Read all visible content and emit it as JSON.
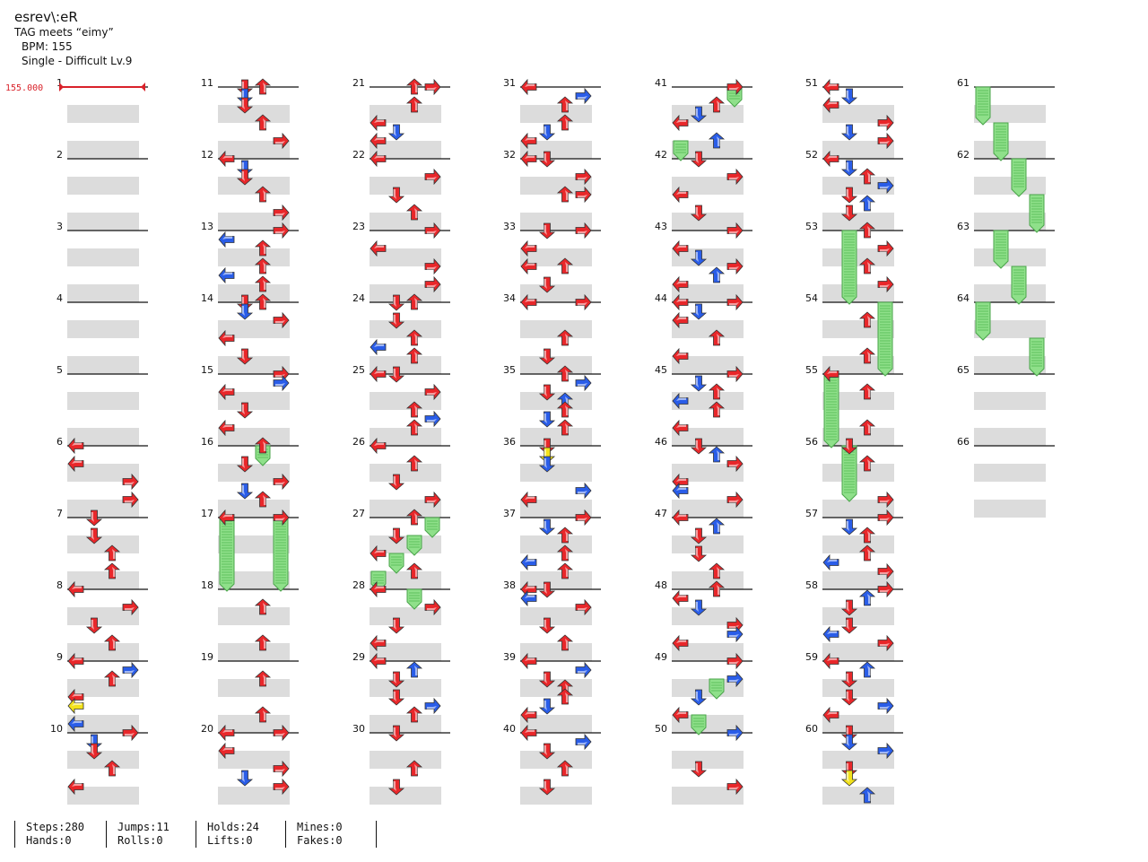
{
  "header": {
    "title": "esrev\\:eR",
    "tagline": "TAG meets “eimy”",
    "bpm_line": "BPM: 155",
    "difficulty_line": "Single - Difficult Lv.9"
  },
  "bpm_marker": "155.000",
  "measure_labels": [
    "1",
    "2",
    "3",
    "4",
    "5",
    "6",
    "7",
    "8",
    "9",
    "10",
    "11",
    "12",
    "13",
    "14",
    "15",
    "16",
    "17",
    "18",
    "19",
    "20",
    "21",
    "22",
    "23",
    "24",
    "25",
    "26",
    "27",
    "28",
    "29",
    "30",
    "31",
    "32",
    "33",
    "34",
    "35",
    "36",
    "37",
    "38",
    "39",
    "40",
    "41",
    "42",
    "43",
    "44",
    "45",
    "46",
    "47",
    "48",
    "49",
    "50",
    "51",
    "52",
    "53",
    "54",
    "55",
    "56",
    "57",
    "58",
    "59",
    "60",
    "61",
    "62",
    "63",
    "64",
    "65",
    "66"
  ],
  "colors": {
    "red_note": "#e8272a",
    "blue_note": "#2a5de8",
    "yellow_note": "#f2e21b",
    "hold_green": "#8fe08a",
    "lane_band": "#dcdcdc",
    "bpm_marker": "#d9222a"
  },
  "steps": [
    [
      6,
      0,
      0,
      "r"
    ],
    [
      6,
      0.25,
      0,
      "r"
    ],
    [
      6,
      0.5,
      3,
      "r"
    ],
    [
      6,
      0.75,
      3,
      "r"
    ],
    [
      7,
      0,
      1,
      "r"
    ],
    [
      7,
      0.25,
      1,
      "r"
    ],
    [
      7,
      0.5,
      2,
      "r"
    ],
    [
      7,
      0.75,
      2,
      "r"
    ],
    [
      8,
      0,
      0,
      "r"
    ],
    [
      8,
      0.25,
      3,
      "r"
    ],
    [
      8,
      0.5,
      1,
      "r"
    ],
    [
      8,
      0.75,
      2,
      "r"
    ],
    [
      9,
      0,
      0,
      "r"
    ],
    [
      9,
      0.125,
      3,
      "b"
    ],
    [
      9,
      0.25,
      2,
      "r"
    ],
    [
      9,
      0.5,
      0,
      "r"
    ],
    [
      9,
      0.625,
      0,
      "y"
    ],
    [
      9,
      0.875,
      0,
      "b"
    ],
    [
      10,
      0,
      3,
      "r"
    ],
    [
      10,
      0.125,
      1,
      "b"
    ],
    [
      10,
      0.25,
      1,
      "r"
    ],
    [
      10,
      0.5,
      2,
      "r"
    ],
    [
      10,
      0.75,
      0,
      "r"
    ],
    [
      11,
      0,
      1,
      "r"
    ],
    [
      11,
      0,
      2,
      "r"
    ],
    [
      11,
      0.125,
      1,
      "b"
    ],
    [
      11,
      0.25,
      1,
      "r"
    ],
    [
      11,
      0.5,
      2,
      "r"
    ],
    [
      11,
      0.75,
      3,
      "r"
    ],
    [
      12,
      0,
      0,
      "r"
    ],
    [
      12,
      0.125,
      1,
      "b"
    ],
    [
      12,
      0.25,
      1,
      "r"
    ],
    [
      12,
      0.5,
      2,
      "r"
    ],
    [
      12,
      0.75,
      3,
      "r"
    ],
    [
      13,
      0,
      3,
      "r"
    ],
    [
      13,
      0.125,
      0,
      "b"
    ],
    [
      13,
      0.25,
      2,
      "r"
    ],
    [
      13,
      0.5,
      2,
      "r"
    ],
    [
      13,
      0.625,
      0,
      "b"
    ],
    [
      13,
      0.75,
      2,
      "r"
    ],
    [
      14,
      0,
      1,
      "r"
    ],
    [
      14,
      0,
      2,
      "r"
    ],
    [
      14,
      0.125,
      1,
      "b"
    ],
    [
      14,
      0.25,
      3,
      "r"
    ],
    [
      14,
      0.5,
      0,
      "r"
    ],
    [
      14,
      0.75,
      1,
      "r"
    ],
    [
      15,
      0,
      3,
      "r"
    ],
    [
      15,
      0.125,
      3,
      "b"
    ],
    [
      15,
      0.25,
      0,
      "r"
    ],
    [
      15,
      0.5,
      1,
      "r"
    ],
    [
      15,
      0.75,
      0,
      "r"
    ],
    [
      16,
      0,
      2,
      "r"
    ],
    [
      16,
      0.25,
      1,
      "r"
    ],
    [
      16,
      0.5,
      3,
      "r"
    ],
    [
      16,
      0.625,
      1,
      "b"
    ],
    [
      16,
      0.75,
      2,
      "r"
    ],
    [
      17,
      0,
      0,
      "r"
    ],
    [
      17,
      0,
      3,
      "r"
    ],
    [
      18,
      0.25,
      2,
      "r"
    ],
    [
      18,
      0.75,
      2,
      "r"
    ],
    [
      19,
      0.25,
      2,
      "r"
    ],
    [
      19,
      0.75,
      2,
      "r"
    ],
    [
      20,
      0,
      0,
      "r"
    ],
    [
      20,
      0,
      3,
      "r"
    ],
    [
      20,
      0.25,
      0,
      "r"
    ],
    [
      20,
      0.5,
      3,
      "r"
    ],
    [
      20,
      0.625,
      1,
      "b"
    ],
    [
      20,
      0.75,
      3,
      "r"
    ],
    [
      21,
      0,
      2,
      "r"
    ],
    [
      21,
      0,
      3,
      "r"
    ],
    [
      21,
      0.25,
      2,
      "r"
    ],
    [
      21,
      0.5,
      0,
      "r"
    ],
    [
      21,
      0.625,
      1,
      "b"
    ],
    [
      21,
      0.75,
      0,
      "r"
    ],
    [
      22,
      0,
      0,
      "r"
    ],
    [
      22,
      0.25,
      3,
      "r"
    ],
    [
      22,
      0.5,
      1,
      "r"
    ],
    [
      22,
      0.75,
      2,
      "r"
    ],
    [
      23,
      0,
      3,
      "r"
    ],
    [
      23,
      0.25,
      0,
      "r"
    ],
    [
      23,
      0.5,
      3,
      "r"
    ],
    [
      23,
      0.75,
      3,
      "r"
    ],
    [
      24,
      0,
      1,
      "r"
    ],
    [
      24,
      0,
      2,
      "r"
    ],
    [
      24,
      0.25,
      1,
      "r"
    ],
    [
      24,
      0.5,
      2,
      "r"
    ],
    [
      24,
      0.625,
      0,
      "b"
    ],
    [
      24,
      0.75,
      2,
      "r"
    ],
    [
      25,
      0,
      0,
      "r"
    ],
    [
      25,
      0,
      1,
      "r"
    ],
    [
      25,
      0.25,
      3,
      "r"
    ],
    [
      25,
      0.5,
      2,
      "r"
    ],
    [
      25,
      0.625,
      3,
      "b"
    ],
    [
      25,
      0.75,
      2,
      "r"
    ],
    [
      26,
      0,
      0,
      "r"
    ],
    [
      26,
      0.25,
      2,
      "r"
    ],
    [
      26,
      0.5,
      1,
      "r"
    ],
    [
      26,
      0.75,
      3,
      "r"
    ],
    [
      27,
      0,
      2,
      "r"
    ],
    [
      27,
      0.25,
      1,
      "r"
    ],
    [
      27,
      0.5,
      0,
      "r"
    ],
    [
      27,
      0.75,
      2,
      "r"
    ],
    [
      28,
      0,
      0,
      "r"
    ],
    [
      28,
      0.25,
      3,
      "r"
    ],
    [
      28,
      0.5,
      1,
      "r"
    ],
    [
      28,
      0.75,
      0,
      "r"
    ],
    [
      29,
      0,
      0,
      "r"
    ],
    [
      29,
      0.125,
      2,
      "b"
    ],
    [
      29,
      0.25,
      1,
      "r"
    ],
    [
      29,
      0.5,
      1,
      "r"
    ],
    [
      29,
      0.625,
      3,
      "b"
    ],
    [
      29,
      0.75,
      2,
      "r"
    ],
    [
      30,
      0,
      1,
      "r"
    ],
    [
      30,
      0.5,
      2,
      "r"
    ],
    [
      30,
      0.75,
      1,
      "r"
    ],
    [
      31,
      0,
      0,
      "r"
    ],
    [
      31,
      0.125,
      3,
      "b"
    ],
    [
      31,
      0.25,
      2,
      "r"
    ],
    [
      31,
      0.5,
      2,
      "r"
    ],
    [
      31,
      0.625,
      1,
      "b"
    ],
    [
      31,
      0.75,
      0,
      "r"
    ],
    [
      32,
      0,
      0,
      "r"
    ],
    [
      32,
      0,
      1,
      "r"
    ],
    [
      32,
      0.25,
      3,
      "r"
    ],
    [
      32,
      0.5,
      2,
      "r"
    ],
    [
      32,
      0.5,
      3,
      "r"
    ],
    [
      33,
      0,
      1,
      "r"
    ],
    [
      33,
      0,
      3,
      "r"
    ],
    [
      33,
      0.25,
      0,
      "r"
    ],
    [
      33,
      0.5,
      2,
      "r"
    ],
    [
      33,
      0.5,
      0,
      "r"
    ],
    [
      33,
      0.75,
      1,
      "r"
    ],
    [
      34,
      0,
      0,
      "r"
    ],
    [
      34,
      0,
      3,
      "r"
    ],
    [
      34,
      0.5,
      2,
      "r"
    ],
    [
      34,
      0.75,
      1,
      "r"
    ],
    [
      35,
      0,
      2,
      "r"
    ],
    [
      35,
      0.125,
      3,
      "b"
    ],
    [
      35,
      0.25,
      1,
      "r"
    ],
    [
      35,
      0.375,
      2,
      "b"
    ],
    [
      35,
      0.5,
      2,
      "r"
    ],
    [
      35,
      0.625,
      1,
      "b"
    ],
    [
      35,
      0.75,
      2,
      "r"
    ],
    [
      36,
      0,
      1,
      "r"
    ],
    [
      36,
      0.125,
      1,
      "y"
    ],
    [
      36,
      0.25,
      1,
      "b"
    ],
    [
      36,
      0.625,
      3,
      "b"
    ],
    [
      36,
      0.75,
      0,
      "r"
    ],
    [
      37,
      0,
      3,
      "r"
    ],
    [
      37,
      0.125,
      1,
      "b"
    ],
    [
      37,
      0.25,
      2,
      "r"
    ],
    [
      37,
      0.5,
      2,
      "r"
    ],
    [
      37,
      0.625,
      0,
      "b"
    ],
    [
      37,
      0.75,
      2,
      "r"
    ],
    [
      38,
      0,
      0,
      "r"
    ],
    [
      38,
      0,
      1,
      "r"
    ],
    [
      38,
      0.125,
      0,
      "b"
    ],
    [
      38,
      0.25,
      3,
      "r"
    ],
    [
      38,
      0.5,
      1,
      "r"
    ],
    [
      38,
      0.75,
      2,
      "r"
    ],
    [
      39,
      0,
      0,
      "r"
    ],
    [
      39,
      0.125,
      3,
      "b"
    ],
    [
      39,
      0.25,
      1,
      "r"
    ],
    [
      39,
      0.375,
      2,
      "r"
    ],
    [
      39,
      0.5,
      2,
      "r"
    ],
    [
      39,
      0.625,
      1,
      "b"
    ],
    [
      39,
      0.75,
      0,
      "r"
    ],
    [
      40,
      0,
      0,
      "r"
    ],
    [
      40,
      0.125,
      3,
      "b"
    ],
    [
      40,
      0.25,
      1,
      "r"
    ],
    [
      40,
      0.5,
      2,
      "r"
    ],
    [
      40,
      0.75,
      1,
      "r"
    ],
    [
      41,
      0,
      3,
      "r"
    ],
    [
      41,
      0.25,
      2,
      "r"
    ],
    [
      41,
      0.375,
      1,
      "b"
    ],
    [
      41,
      0.5,
      0,
      "r"
    ],
    [
      41,
      0.75,
      2,
      "b"
    ],
    [
      42,
      0,
      1,
      "r"
    ],
    [
      42,
      0.25,
      3,
      "r"
    ],
    [
      42,
      0.5,
      0,
      "r"
    ],
    [
      42,
      0.75,
      1,
      "r"
    ],
    [
      43,
      0,
      3,
      "r"
    ],
    [
      43,
      0.25,
      0,
      "r"
    ],
    [
      43,
      0.375,
      1,
      "b"
    ],
    [
      43,
      0.5,
      3,
      "r"
    ],
    [
      43,
      0.625,
      2,
      "b"
    ],
    [
      43,
      0.75,
      0,
      "r"
    ],
    [
      44,
      0,
      0,
      "r"
    ],
    [
      44,
      0,
      3,
      "r"
    ],
    [
      44,
      0.125,
      1,
      "b"
    ],
    [
      44,
      0.25,
      0,
      "r"
    ],
    [
      44,
      0.5,
      2,
      "r"
    ],
    [
      44,
      0.75,
      0,
      "r"
    ],
    [
      45,
      0,
      3,
      "r"
    ],
    [
      45,
      0.125,
      1,
      "b"
    ],
    [
      45,
      0.25,
      2,
      "r"
    ],
    [
      45,
      0.375,
      0,
      "b"
    ],
    [
      45,
      0.5,
      2,
      "r"
    ],
    [
      45,
      0.75,
      0,
      "r"
    ],
    [
      46,
      0,
      1,
      "r"
    ],
    [
      46,
      0.125,
      2,
      "b"
    ],
    [
      46,
      0.25,
      3,
      "r"
    ],
    [
      46,
      0.5,
      0,
      "r"
    ],
    [
      46,
      0.625,
      0,
      "b"
    ],
    [
      46,
      0.75,
      3,
      "r"
    ],
    [
      47,
      0,
      0,
      "r"
    ],
    [
      47,
      0.125,
      2,
      "b"
    ],
    [
      47,
      0.25,
      1,
      "r"
    ],
    [
      47,
      0.5,
      1,
      "r"
    ],
    [
      47,
      0.75,
      2,
      "r"
    ],
    [
      48,
      0,
      2,
      "r"
    ],
    [
      48,
      0.125,
      0,
      "r"
    ],
    [
      48,
      0.25,
      1,
      "b"
    ],
    [
      48,
      0.5,
      3,
      "r"
    ],
    [
      48,
      0.625,
      3,
      "b"
    ],
    [
      48,
      0.75,
      0,
      "r"
    ],
    [
      49,
      0,
      3,
      "r"
    ],
    [
      49,
      0.25,
      3,
      "b"
    ],
    [
      49,
      0.5,
      1,
      "b"
    ],
    [
      49,
      0.75,
      0,
      "r"
    ],
    [
      50,
      0,
      3,
      "b"
    ],
    [
      50,
      0.5,
      1,
      "r"
    ],
    [
      50,
      0.75,
      3,
      "r"
    ],
    [
      51,
      0,
      0,
      "r"
    ],
    [
      51,
      0.125,
      1,
      "b"
    ],
    [
      51,
      0.25,
      0,
      "r"
    ],
    [
      51,
      0.5,
      3,
      "r"
    ],
    [
      51,
      0.625,
      1,
      "b"
    ],
    [
      51,
      0.75,
      3,
      "r"
    ],
    [
      52,
      0,
      0,
      "r"
    ],
    [
      52,
      0.125,
      1,
      "b"
    ],
    [
      52,
      0.25,
      2,
      "r"
    ],
    [
      52,
      0.375,
      3,
      "b"
    ],
    [
      52,
      0.5,
      1,
      "r"
    ],
    [
      52,
      0.625,
      2,
      "b"
    ],
    [
      52,
      0.75,
      1,
      "r"
    ],
    [
      53,
      0,
      2,
      "r"
    ],
    [
      53,
      0.25,
      3,
      "r"
    ],
    [
      53,
      0.5,
      2,
      "r"
    ],
    [
      53,
      0.75,
      3,
      "r"
    ],
    [
      54,
      0.25,
      2,
      "r"
    ],
    [
      54,
      0.75,
      2,
      "r"
    ],
    [
      55,
      0,
      0,
      "r"
    ],
    [
      55,
      0.25,
      2,
      "r"
    ],
    [
      55,
      0.75,
      2,
      "r"
    ],
    [
      56,
      0,
      1,
      "r"
    ],
    [
      56,
      0.25,
      2,
      "r"
    ],
    [
      56,
      0.75,
      3,
      "r"
    ],
    [
      57,
      0,
      3,
      "r"
    ],
    [
      57,
      0.125,
      1,
      "b"
    ],
    [
      57,
      0.25,
      2,
      "r"
    ],
    [
      57,
      0.5,
      2,
      "r"
    ],
    [
      57,
      0.625,
      0,
      "b"
    ],
    [
      57,
      0.75,
      3,
      "r"
    ],
    [
      58,
      0,
      3,
      "r"
    ],
    [
      58,
      0.125,
      2,
      "b"
    ],
    [
      58,
      0.25,
      1,
      "r"
    ],
    [
      58,
      0.5,
      1,
      "r"
    ],
    [
      58,
      0.625,
      0,
      "b"
    ],
    [
      58,
      0.75,
      3,
      "r"
    ],
    [
      59,
      0,
      0,
      "r"
    ],
    [
      59,
      0.125,
      2,
      "b"
    ],
    [
      59,
      0.25,
      1,
      "r"
    ],
    [
      59,
      0.5,
      1,
      "r"
    ],
    [
      59,
      0.625,
      3,
      "b"
    ],
    [
      59,
      0.75,
      0,
      "r"
    ],
    [
      60,
      0,
      1,
      "r"
    ],
    [
      60,
      0.125,
      1,
      "b"
    ],
    [
      60,
      0.25,
      3,
      "b"
    ],
    [
      60,
      0.5,
      1,
      "r"
    ],
    [
      60,
      0.625,
      1,
      "y"
    ],
    [
      60,
      0.875,
      2,
      "b"
    ]
  ],
  "holds": [
    [
      16,
      0,
      2,
      16,
      0.25
    ],
    [
      17,
      0,
      0,
      18,
      0
    ],
    [
      17,
      0,
      3,
      18,
      0
    ],
    [
      27,
      0,
      3,
      27,
      0.25
    ],
    [
      27,
      0.25,
      2,
      27,
      0.5
    ],
    [
      27,
      0.5,
      1,
      27,
      0.75
    ],
    [
      27,
      0.75,
      0,
      28,
      0
    ],
    [
      28,
      0,
      2,
      28,
      0.25
    ],
    [
      41,
      0,
      3,
      41,
      0.25
    ],
    [
      41,
      0.75,
      0,
      42,
      0
    ],
    [
      49,
      0.25,
      2,
      49,
      0.5
    ],
    [
      49,
      0.75,
      1,
      50,
      0
    ],
    [
      53,
      0,
      1,
      54,
      0
    ],
    [
      54,
      0,
      3,
      55,
      0
    ],
    [
      55,
      0,
      0,
      56,
      0
    ],
    [
      56,
      0,
      1,
      56,
      0.75
    ],
    [
      61,
      0,
      0,
      61,
      0.5
    ],
    [
      61,
      0.5,
      1,
      62,
      0
    ],
    [
      62,
      0,
      2,
      62,
      0.5
    ],
    [
      62,
      0.5,
      3,
      63,
      0
    ],
    [
      63,
      0,
      1,
      63,
      0.5
    ],
    [
      63,
      0.5,
      2,
      64,
      0
    ],
    [
      64,
      0,
      0,
      64,
      0.5
    ],
    [
      64,
      0.5,
      3,
      65,
      0
    ]
  ],
  "stats": [
    {
      "top": "Steps:280",
      "bottom": "Hands:0"
    },
    {
      "top": "Jumps:11",
      "bottom": "Rolls:0"
    },
    {
      "top": "Holds:24",
      "bottom": "Lifts:0"
    },
    {
      "top": "Mines:0",
      "bottom": "Fakes:0"
    }
  ]
}
